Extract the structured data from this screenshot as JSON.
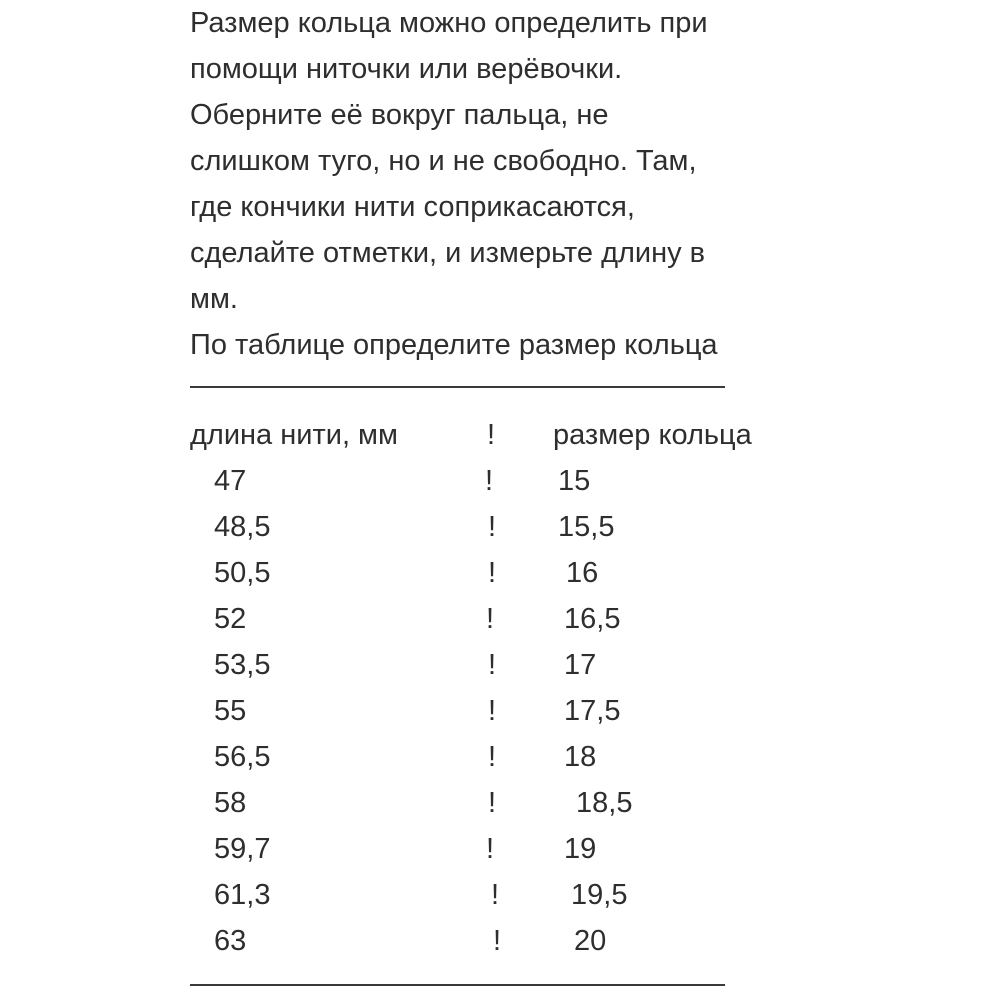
{
  "intro": [
    "Размер кольца можно определить при",
    "помощи ниточки или верёвочки.",
    "Оберните её вокруг пальца, не",
    "слишком туго, но и не свободно. Там,",
    "где кончики нити соприкасаются,",
    "сделайте отметки, и измерьте длину в",
    "мм.",
    "По таблице определите размер кольца"
  ],
  "table": {
    "headers": [
      "длина нити, мм",
      "!",
      "размер кольца"
    ],
    "separator": "!",
    "rows": [
      [
        "47",
        "15"
      ],
      [
        "48,5",
        "15,5"
      ],
      [
        "50,5",
        "16"
      ],
      [
        "52",
        "16,5"
      ],
      [
        "53,5",
        "17"
      ],
      [
        "55",
        "17,5"
      ],
      [
        "56,5",
        "18"
      ],
      [
        "58",
        "18,5"
      ],
      [
        "59,7",
        "19"
      ],
      [
        "61,3",
        "19,5"
      ],
      [
        "63",
        "20"
      ]
    ]
  }
}
